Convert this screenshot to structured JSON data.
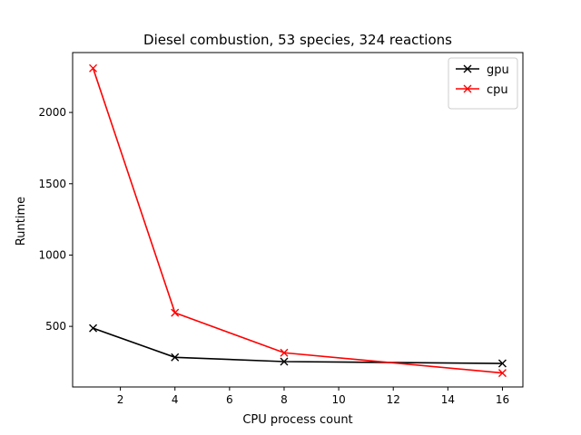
{
  "chart_data": {
    "type": "line",
    "title": "Diesel combustion, 53 species, 324 reactions",
    "xlabel": "CPU process count",
    "ylabel": "Runtime",
    "xlim": [
      0.25,
      16.75
    ],
    "ylim": [
      75,
      2420
    ],
    "xticks": [
      2,
      4,
      6,
      8,
      10,
      12,
      14,
      16
    ],
    "yticks": [
      500,
      1000,
      1500,
      2000
    ],
    "grid": false,
    "legend": "top-right",
    "marker": "x",
    "series": [
      {
        "name": "gpu",
        "color": "#000000",
        "x": [
          1,
          4,
          8,
          16
        ],
        "y": [
          487,
          283,
          253,
          240
        ]
      },
      {
        "name": "cpu",
        "color": "#ff0000",
        "x": [
          1,
          4,
          8,
          16
        ],
        "y": [
          2310,
          595,
          315,
          173
        ]
      }
    ]
  }
}
